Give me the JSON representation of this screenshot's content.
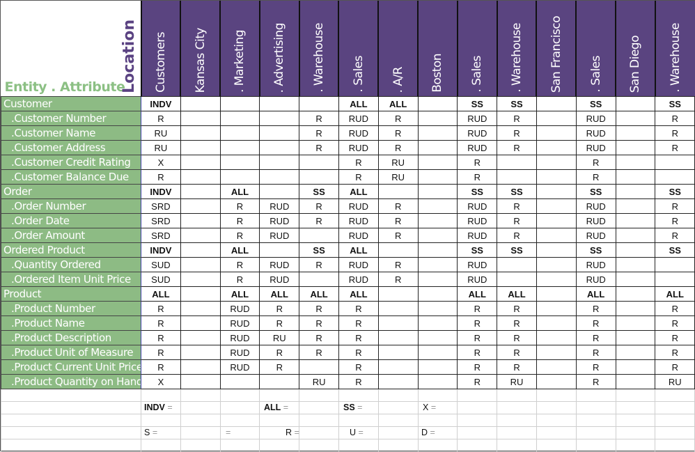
{
  "header": {
    "entity_attribute_label": "Entity . Attribute",
    "location_label": "Location",
    "columns": [
      "Customers",
      "Kansas City",
      ". Marketing",
      ". Advertising",
      ". Warehouse",
      ". Sales",
      ". A/R",
      "Boston",
      ". Sales",
      ". Warehouse",
      "San Francisco",
      ". Sales",
      "San Diego",
      ". Warehouse"
    ]
  },
  "colors": {
    "header_purple": "#5a4480",
    "label_green": "#8dbb84",
    "title_green": "#8cc084"
  },
  "rows": [
    {
      "label": "Customer",
      "type": "entity",
      "cells": [
        "INDV",
        "",
        "",
        "",
        "",
        "ALL",
        "ALL",
        "",
        "SS",
        "SS",
        "",
        "SS",
        "",
        "SS"
      ]
    },
    {
      "label": ".Customer Number",
      "type": "attribute",
      "cells": [
        "R",
        "",
        "",
        "",
        "R",
        "RUD",
        "R",
        "",
        "RUD",
        "R",
        "",
        "RUD",
        "",
        "R"
      ]
    },
    {
      "label": ".Customer Name",
      "type": "attribute",
      "cells": [
        "RU",
        "",
        "",
        "",
        "R",
        "RUD",
        "R",
        "",
        "RUD",
        "R",
        "",
        "RUD",
        "",
        "R"
      ]
    },
    {
      "label": ".Customer Address",
      "type": "attribute",
      "cells": [
        "RU",
        "",
        "",
        "",
        "R",
        "RUD",
        "R",
        "",
        "RUD",
        "R",
        "",
        "RUD",
        "",
        "R"
      ]
    },
    {
      "label": ".Customer Credit Rating",
      "type": "attribute",
      "cells": [
        "X",
        "",
        "",
        "",
        "",
        "R",
        "RU",
        "",
        "R",
        "",
        "",
        "R",
        "",
        ""
      ]
    },
    {
      "label": ".Customer Balance Due",
      "type": "attribute",
      "cells": [
        "R",
        "",
        "",
        "",
        "",
        "R",
        "RU",
        "",
        "R",
        "",
        "",
        "R",
        "",
        ""
      ]
    },
    {
      "label": "Order",
      "type": "entity",
      "cells": [
        "INDV",
        "",
        "ALL",
        "",
        "SS",
        "ALL",
        "",
        "",
        "SS",
        "SS",
        "",
        "SS",
        "",
        "SS"
      ]
    },
    {
      "label": ".Order Number",
      "type": "attribute",
      "cells": [
        "SRD",
        "",
        "R",
        "RUD",
        "R",
        "RUD",
        "R",
        "",
        "RUD",
        "R",
        "",
        "RUD",
        "",
        "R"
      ]
    },
    {
      "label": ".Order Date",
      "type": "attribute",
      "cells": [
        "SRD",
        "",
        "R",
        "RUD",
        "R",
        "RUD",
        "R",
        "",
        "RUD",
        "R",
        "",
        "RUD",
        "",
        "R"
      ]
    },
    {
      "label": ".Order Amount",
      "type": "attribute",
      "cells": [
        "SRD",
        "",
        "R",
        "RUD",
        "",
        "RUD",
        "R",
        "",
        "RUD",
        "R",
        "",
        "RUD",
        "",
        "R"
      ]
    },
    {
      "label": "Ordered Product",
      "type": "entity",
      "cells": [
        "INDV",
        "",
        "ALL",
        "",
        "SS",
        "ALL",
        "",
        "",
        "SS",
        "SS",
        "",
        "SS",
        "",
        "SS"
      ]
    },
    {
      "label": ".Quantity Ordered",
      "type": "attribute",
      "cells": [
        "SUD",
        "",
        "R",
        "RUD",
        "R",
        "RUD",
        "R",
        "",
        "RUD",
        "",
        "",
        "RUD",
        "",
        ""
      ]
    },
    {
      "label": ".Ordered Item Unit Price",
      "type": "attribute",
      "cells": [
        "SUD",
        "",
        "R",
        "RUD",
        "",
        "RUD",
        "R",
        "",
        "RUD",
        "",
        "",
        "RUD",
        "",
        ""
      ]
    },
    {
      "label": "Product",
      "type": "entity",
      "cells": [
        "ALL",
        "",
        "ALL",
        "ALL",
        "ALL",
        "ALL",
        "",
        "",
        "ALL",
        "ALL",
        "",
        "ALL",
        "",
        "ALL"
      ]
    },
    {
      "label": ".Product Number",
      "type": "attribute",
      "cells": [
        "R",
        "",
        "RUD",
        "R",
        "R",
        "R",
        "",
        "",
        "R",
        "R",
        "",
        "R",
        "",
        "R"
      ]
    },
    {
      "label": ".Product Name",
      "type": "attribute",
      "cells": [
        "R",
        "",
        "RUD",
        "R",
        "R",
        "R",
        "",
        "",
        "R",
        "R",
        "",
        "R",
        "",
        "R"
      ]
    },
    {
      "label": ".Product Description",
      "type": "attribute",
      "cells": [
        "R",
        "",
        "RUD",
        "RU",
        "R",
        "R",
        "",
        "",
        "R",
        "R",
        "",
        "R",
        "",
        "R"
      ]
    },
    {
      "label": ".Product Unit of Measure",
      "type": "attribute",
      "cells": [
        "R",
        "",
        "RUD",
        "R",
        "R",
        "R",
        "",
        "",
        "R",
        "R",
        "",
        "R",
        "",
        "R"
      ]
    },
    {
      "label": ".Product Current Unit Price",
      "type": "attribute",
      "cells": [
        "R",
        "",
        "RUD",
        "R",
        "",
        "R",
        "",
        "",
        "R",
        "R",
        "",
        "R",
        "",
        "R"
      ]
    },
    {
      "label": ".Product Quantity on Hand",
      "type": "attribute",
      "cells": [
        "X",
        "",
        "",
        "",
        "RU",
        "R",
        "",
        "",
        "R",
        "RU",
        "",
        "R",
        "",
        "RU"
      ]
    }
  ],
  "legend": {
    "row1": [
      {
        "key": "INDV",
        "eq": "=",
        "bold": true
      },
      {
        "key": "ALL",
        "eq": "=",
        "bold": true
      },
      {
        "key": "SS",
        "eq": "=",
        "bold": true
      },
      {
        "key": "X",
        "eq": "=",
        "bold": false
      }
    ],
    "row2": [
      {
        "key": "S",
        "eq": "=",
        "bold": false
      },
      {
        "key": "",
        "eq": "=",
        "bold": false
      },
      {
        "key": "R",
        "eq": "=",
        "bold": false
      },
      {
        "key": "U",
        "eq": "=",
        "bold": false
      },
      {
        "key": "D",
        "eq": "=",
        "bold": false
      }
    ]
  }
}
